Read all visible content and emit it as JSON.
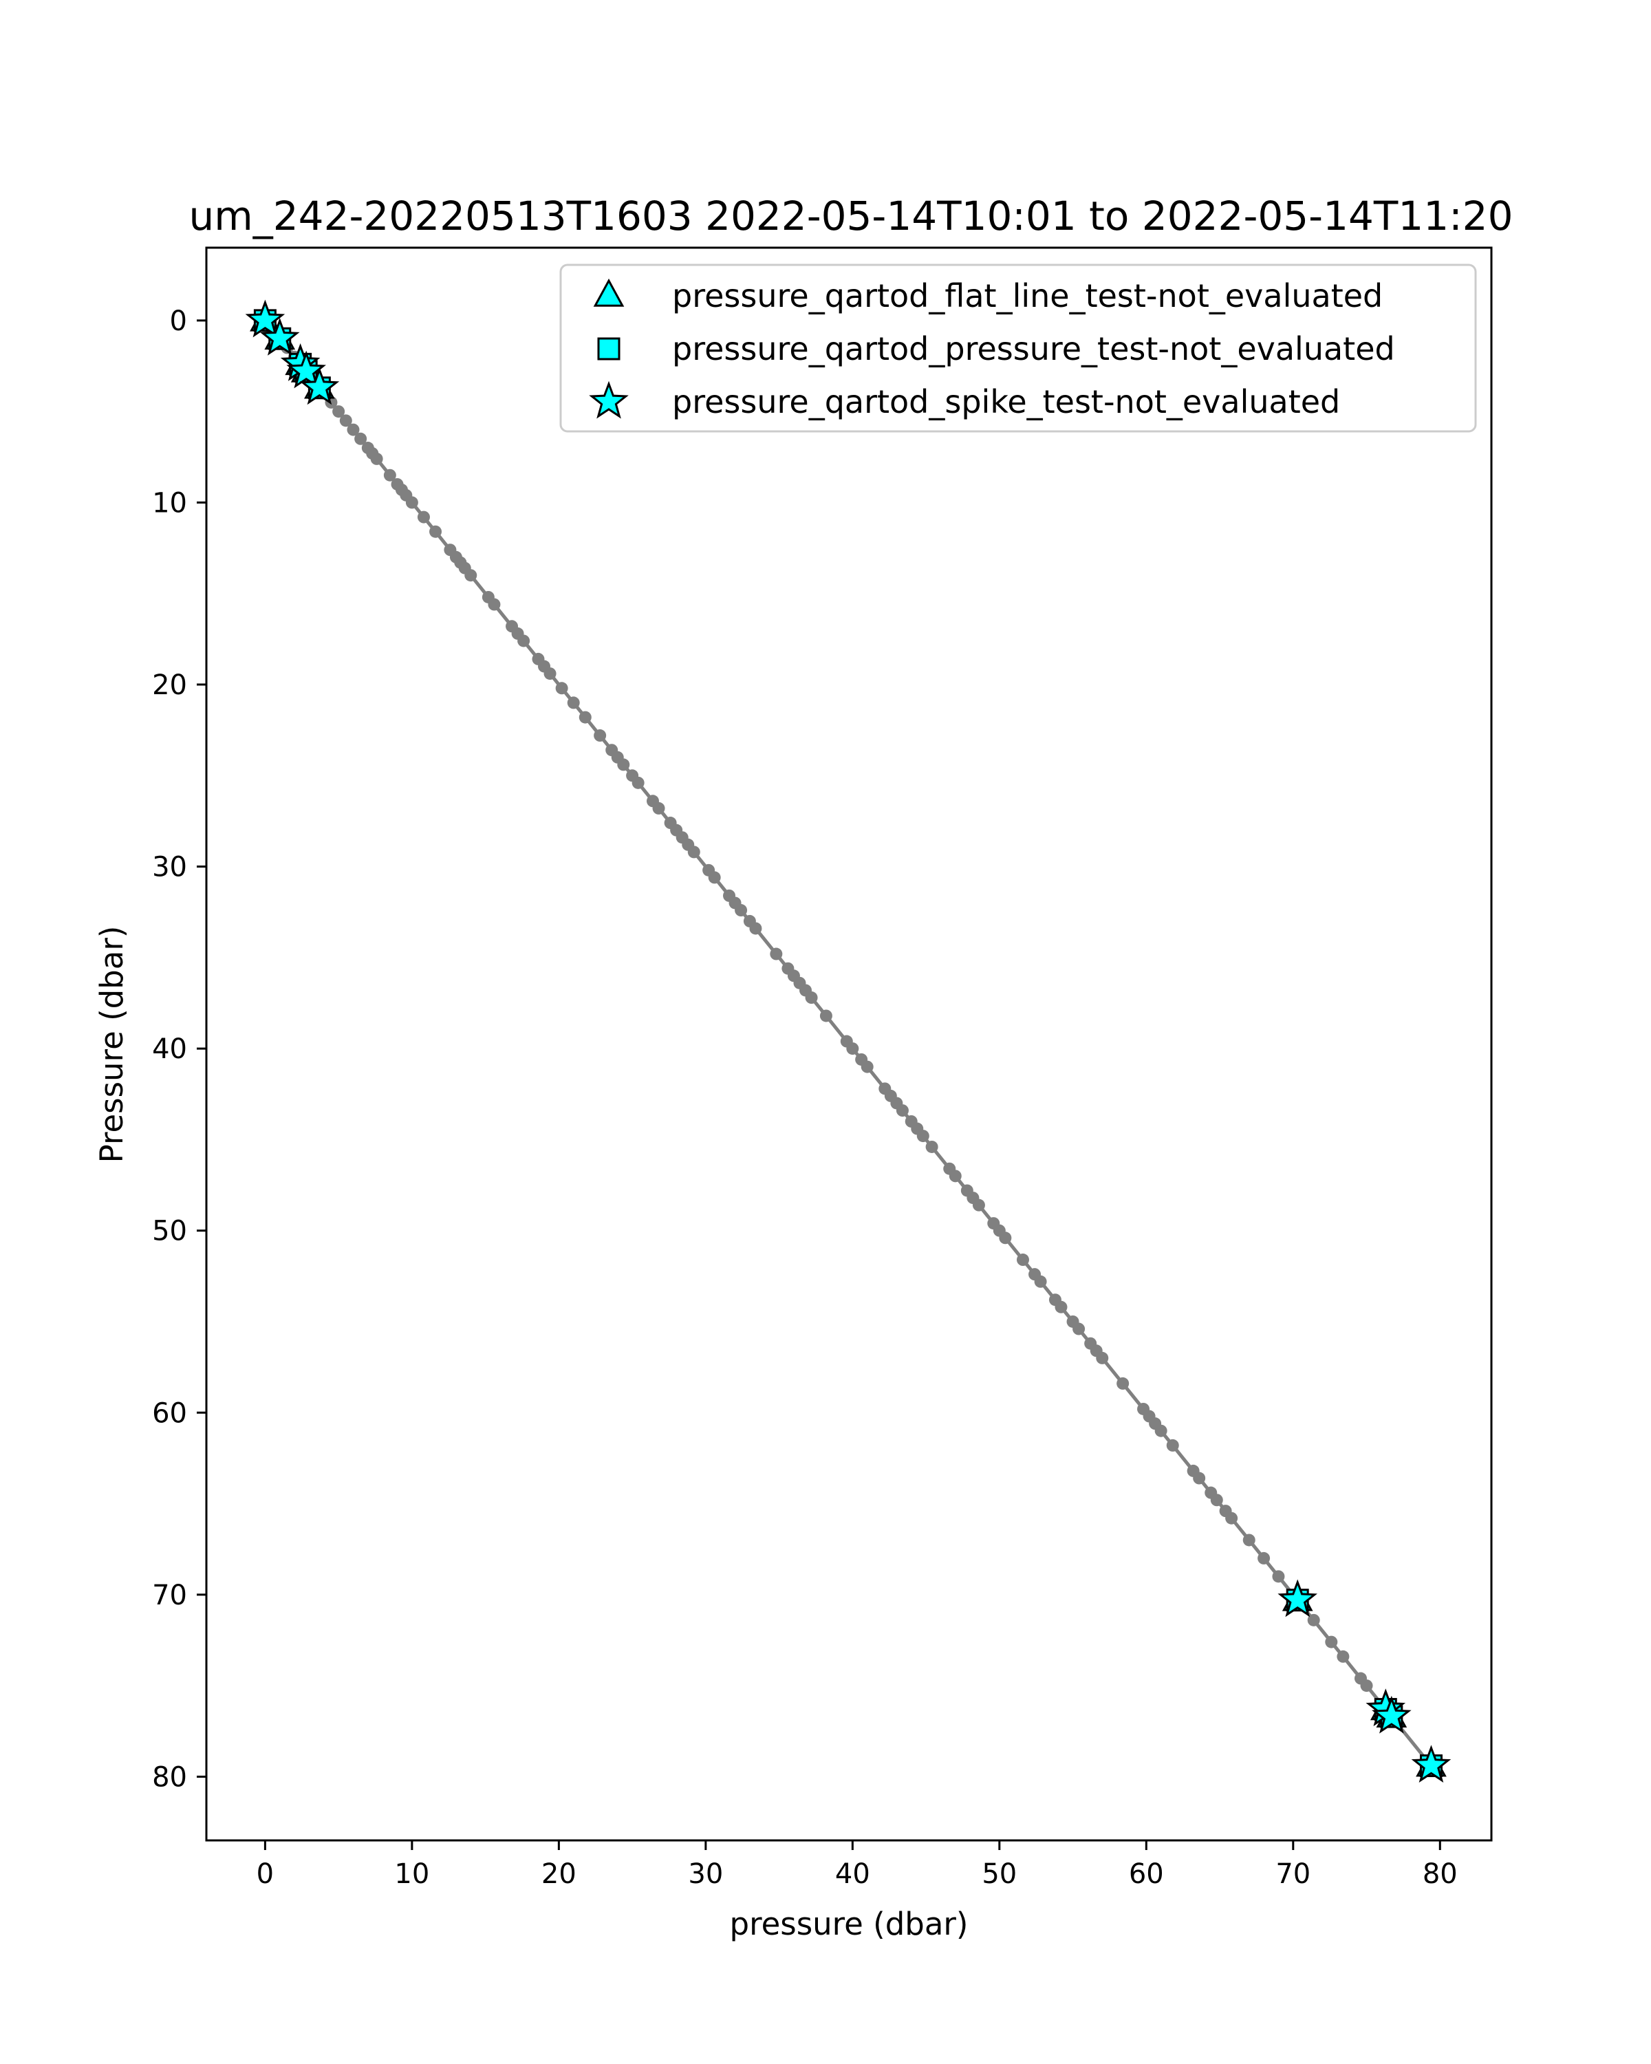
{
  "chart_data": {
    "type": "scatter",
    "title": "um_242-20220513T1603 2022-05-14T10:01 to 2022-05-14T11:20",
    "xlabel": "pressure (dbar)",
    "ylabel": "Pressure (dbar)",
    "xlim": [
      -4,
      83.5
    ],
    "ylim": [
      83.5,
      -4
    ],
    "y_inverted": true,
    "xticks": [
      0,
      10,
      20,
      30,
      40,
      50,
      60,
      70,
      80
    ],
    "yticks": [
      0,
      10,
      20,
      30,
      40,
      50,
      60,
      70,
      80
    ],
    "grid": false,
    "legend_position": "top-right",
    "profile": {
      "color": "#808080",
      "x": [
        0,
        0.5,
        1,
        1.5,
        2,
        2.5,
        3,
        3.5,
        4,
        4.5,
        5,
        5.5,
        6,
        6.5,
        7,
        7.3,
        7.6,
        8.5,
        9,
        9.3,
        9.6,
        10,
        10.8,
        11.6,
        12.6,
        13,
        13.3,
        13.6,
        14,
        15.2,
        15.6,
        16.8,
        17.2,
        17.6,
        18.6,
        19,
        19.4,
        20.2,
        21,
        21.8,
        22.8,
        23.6,
        24,
        24.4,
        25,
        25.4,
        26.4,
        26.8,
        27.6,
        28,
        28.4,
        28.8,
        29.2,
        30.2,
        30.6,
        31.6,
        32,
        32.4,
        33,
        33.4,
        34.8,
        35.6,
        36,
        36.4,
        36.8,
        37.2,
        38.2,
        39.6,
        40,
        40.6,
        41,
        42.2,
        42.6,
        43,
        43.4,
        44,
        44.4,
        44.8,
        45.4,
        46.6,
        47,
        47.8,
        48.2,
        48.6,
        49.6,
        50,
        50.4,
        51.6,
        52.4,
        52.8,
        53.8,
        54.2,
        55,
        55.4,
        56.2,
        56.6,
        57,
        58.4,
        59.8,
        60.2,
        60.6,
        61,
        61.8,
        63.2,
        63.6,
        64.4,
        64.8,
        65.4,
        65.8,
        67,
        68,
        69,
        70.4,
        71.4,
        72.6,
        73.4,
        74.6,
        75,
        76.2,
        76.8,
        79.4
      ],
      "y": [
        0,
        0.5,
        1,
        1.5,
        2,
        2.5,
        3,
        3.5,
        4,
        4.5,
        5,
        5.5,
        6,
        6.5,
        7,
        7.3,
        7.6,
        8.5,
        9,
        9.3,
        9.6,
        10,
        10.8,
        11.6,
        12.6,
        13,
        13.3,
        13.6,
        14,
        15.2,
        15.6,
        16.8,
        17.2,
        17.6,
        18.6,
        19,
        19.4,
        20.2,
        21,
        21.8,
        22.8,
        23.6,
        24,
        24.4,
        25,
        25.4,
        26.4,
        26.8,
        27.6,
        28,
        28.4,
        28.8,
        29.2,
        30.2,
        30.6,
        31.6,
        32,
        32.4,
        33,
        33.4,
        34.8,
        35.6,
        36,
        36.4,
        36.8,
        37.2,
        38.2,
        39.6,
        40,
        40.6,
        41,
        42.2,
        42.6,
        43,
        43.4,
        44,
        44.4,
        44.8,
        45.4,
        46.6,
        47,
        47.8,
        48.2,
        48.6,
        49.6,
        50,
        50.4,
        51.6,
        52.4,
        52.8,
        53.8,
        54.2,
        55,
        55.4,
        56.2,
        56.6,
        57,
        58.4,
        59.8,
        60.2,
        60.6,
        61,
        61.8,
        63.2,
        63.6,
        64.4,
        64.8,
        65.4,
        65.8,
        67,
        68,
        69,
        70.4,
        71.4,
        72.6,
        73.4,
        74.6,
        75,
        76.2,
        76.8,
        79.4
      ]
    },
    "series": [
      {
        "name": "pressure_qartod_flat_line_test-not_evaluated",
        "marker": "triangle",
        "color": "#00ffff",
        "x": [
          0,
          1,
          2.4,
          2.8,
          3.7,
          70.3,
          76.3,
          76.7,
          79.4
        ],
        "y": [
          0,
          1,
          2.4,
          2.8,
          3.7,
          70.3,
          76.3,
          76.7,
          79.4
        ]
      },
      {
        "name": "pressure_qartod_pressure_test-not_evaluated",
        "marker": "square",
        "color": "#00ffff",
        "x": [
          0,
          1,
          2.4,
          2.8,
          3.7,
          70.3,
          76.3,
          76.7,
          79.4
        ],
        "y": [
          0,
          1,
          2.4,
          2.8,
          3.7,
          70.3,
          76.3,
          76.7,
          79.4
        ]
      },
      {
        "name": "pressure_qartod_spike_test-not_evaluated",
        "marker": "star",
        "color": "#00ffff",
        "x": [
          0,
          1,
          2.4,
          2.8,
          3.7,
          70.3,
          76.3,
          76.7,
          79.4
        ],
        "y": [
          0,
          1,
          2.4,
          2.8,
          3.7,
          70.3,
          76.3,
          76.7,
          79.4
        ]
      }
    ]
  }
}
